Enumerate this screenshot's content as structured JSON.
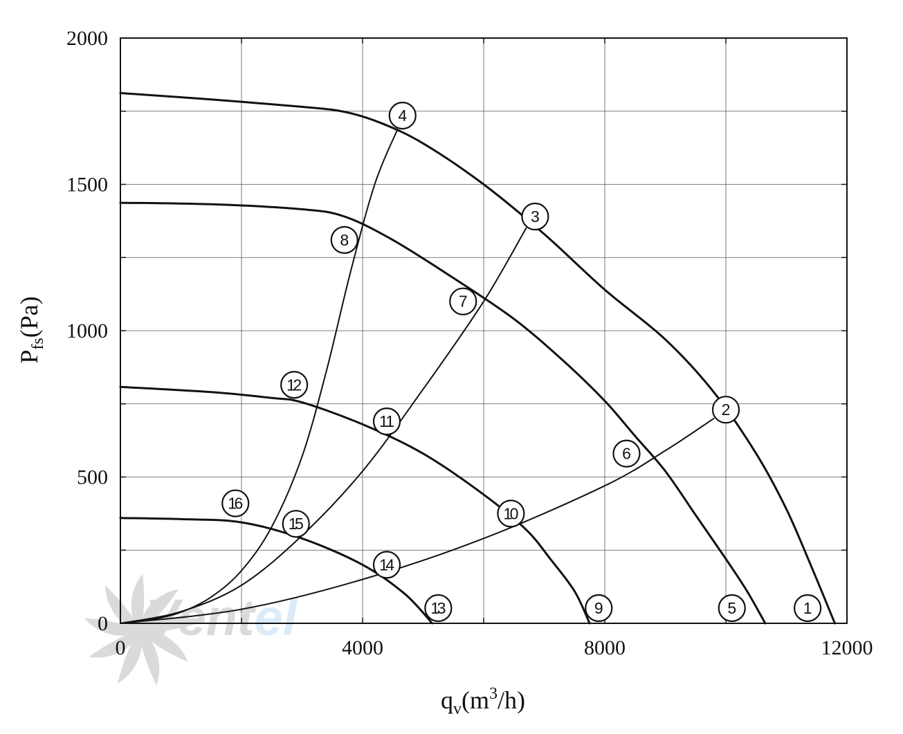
{
  "chart_data": {
    "type": "line",
    "xlabel": {
      "main": "q",
      "sub": "v",
      "unit_pre": "(m",
      "unit_sup": "3",
      "unit_post": "/h)"
    },
    "ylabel": {
      "main": "P",
      "sub": "fs",
      "unit": "(Pa)"
    },
    "xlim": [
      0,
      12000
    ],
    "ylim": [
      0,
      2000
    ],
    "x_ticks": [
      0,
      4000,
      8000,
      12000
    ],
    "y_ticks": [
      0,
      500,
      1000,
      1500,
      2000
    ],
    "x_minor_step": 2000,
    "y_minor_step": 250,
    "grid": true,
    "watermark": {
      "part1": "Vent",
      "part2": "el",
      "color1": "#d4d4d4",
      "color2": "#d6e8f8"
    },
    "series": [
      {
        "id": "curve-a",
        "width": 3,
        "points": [
          [
            0,
            1812
          ],
          [
            1500,
            1790
          ],
          [
            3000,
            1765
          ],
          [
            3700,
            1748
          ],
          [
            4300,
            1710
          ],
          [
            5000,
            1640
          ],
          [
            6000,
            1500
          ],
          [
            7000,
            1330
          ],
          [
            8000,
            1140
          ],
          [
            9000,
            970
          ],
          [
            9800,
            790
          ],
          [
            10500,
            580
          ],
          [
            11000,
            390
          ],
          [
            11400,
            200
          ],
          [
            11800,
            0
          ]
        ]
      },
      {
        "id": "curve-b",
        "width": 3,
        "points": [
          [
            0,
            1437
          ],
          [
            1500,
            1432
          ],
          [
            3000,
            1415
          ],
          [
            3700,
            1390
          ],
          [
            4500,
            1310
          ],
          [
            5500,
            1180
          ],
          [
            6500,
            1040
          ],
          [
            7300,
            900
          ],
          [
            8000,
            760
          ],
          [
            8500,
            640
          ],
          [
            9000,
            520
          ],
          [
            9500,
            370
          ],
          [
            10000,
            220
          ],
          [
            10350,
            110
          ],
          [
            10650,
            0
          ]
        ]
      },
      {
        "id": "curve-c",
        "width": 3,
        "points": [
          [
            0,
            808
          ],
          [
            1500,
            790
          ],
          [
            2500,
            770
          ],
          [
            3000,
            755
          ],
          [
            4000,
            680
          ],
          [
            5000,
            580
          ],
          [
            6000,
            440
          ],
          [
            6700,
            320
          ],
          [
            7100,
            220
          ],
          [
            7500,
            110
          ],
          [
            7750,
            0
          ]
        ]
      },
      {
        "id": "curve-d",
        "width": 3,
        "points": [
          [
            0,
            360
          ],
          [
            1000,
            356
          ],
          [
            2000,
            345
          ],
          [
            3000,
            290
          ],
          [
            4000,
            200
          ],
          [
            4700,
            100
          ],
          [
            5150,
            0
          ]
        ]
      },
      {
        "id": "curve-e",
        "width": 2,
        "points": [
          [
            0,
            0
          ],
          [
            500,
            12
          ],
          [
            1000,
            38
          ],
          [
            1500,
            90
          ],
          [
            2000,
            180
          ],
          [
            2500,
            330
          ],
          [
            3000,
            570
          ],
          [
            3400,
            860
          ],
          [
            3800,
            1200
          ],
          [
            4200,
            1500
          ],
          [
            4570,
            1685
          ]
        ]
      },
      {
        "id": "curve-f",
        "width": 2,
        "points": [
          [
            0,
            0
          ],
          [
            1000,
            40
          ],
          [
            2000,
            130
          ],
          [
            3000,
            300
          ],
          [
            4000,
            520
          ],
          [
            5000,
            800
          ],
          [
            6000,
            1100
          ],
          [
            6700,
            1350
          ]
        ]
      },
      {
        "id": "curve-g",
        "width": 2,
        "points": [
          [
            0,
            0
          ],
          [
            2000,
            48
          ],
          [
            4000,
            150
          ],
          [
            6000,
            290
          ],
          [
            8000,
            470
          ],
          [
            9000,
            590
          ],
          [
            9800,
            700
          ]
        ]
      }
    ],
    "markers": [
      {
        "label": "1",
        "x": 11350,
        "y": 52
      },
      {
        "label": "2",
        "x": 10000,
        "y": 730
      },
      {
        "label": "3",
        "x": 6850,
        "y": 1390
      },
      {
        "label": "4",
        "x": 4660,
        "y": 1735
      },
      {
        "label": "5",
        "x": 10100,
        "y": 52
      },
      {
        "label": "6",
        "x": 8360,
        "y": 580
      },
      {
        "label": "7",
        "x": 5660,
        "y": 1100
      },
      {
        "label": "8",
        "x": 3700,
        "y": 1310
      },
      {
        "label": "9",
        "x": 7900,
        "y": 52
      },
      {
        "label": "10",
        "x": 6450,
        "y": 375
      },
      {
        "label": "11",
        "x": 4400,
        "y": 690
      },
      {
        "label": "12",
        "x": 2870,
        "y": 815
      },
      {
        "label": "13",
        "x": 5250,
        "y": 52
      },
      {
        "label": "14",
        "x": 4400,
        "y": 200
      },
      {
        "label": "15",
        "x": 2900,
        "y": 340
      },
      {
        "label": "16",
        "x": 1900,
        "y": 410
      }
    ]
  }
}
